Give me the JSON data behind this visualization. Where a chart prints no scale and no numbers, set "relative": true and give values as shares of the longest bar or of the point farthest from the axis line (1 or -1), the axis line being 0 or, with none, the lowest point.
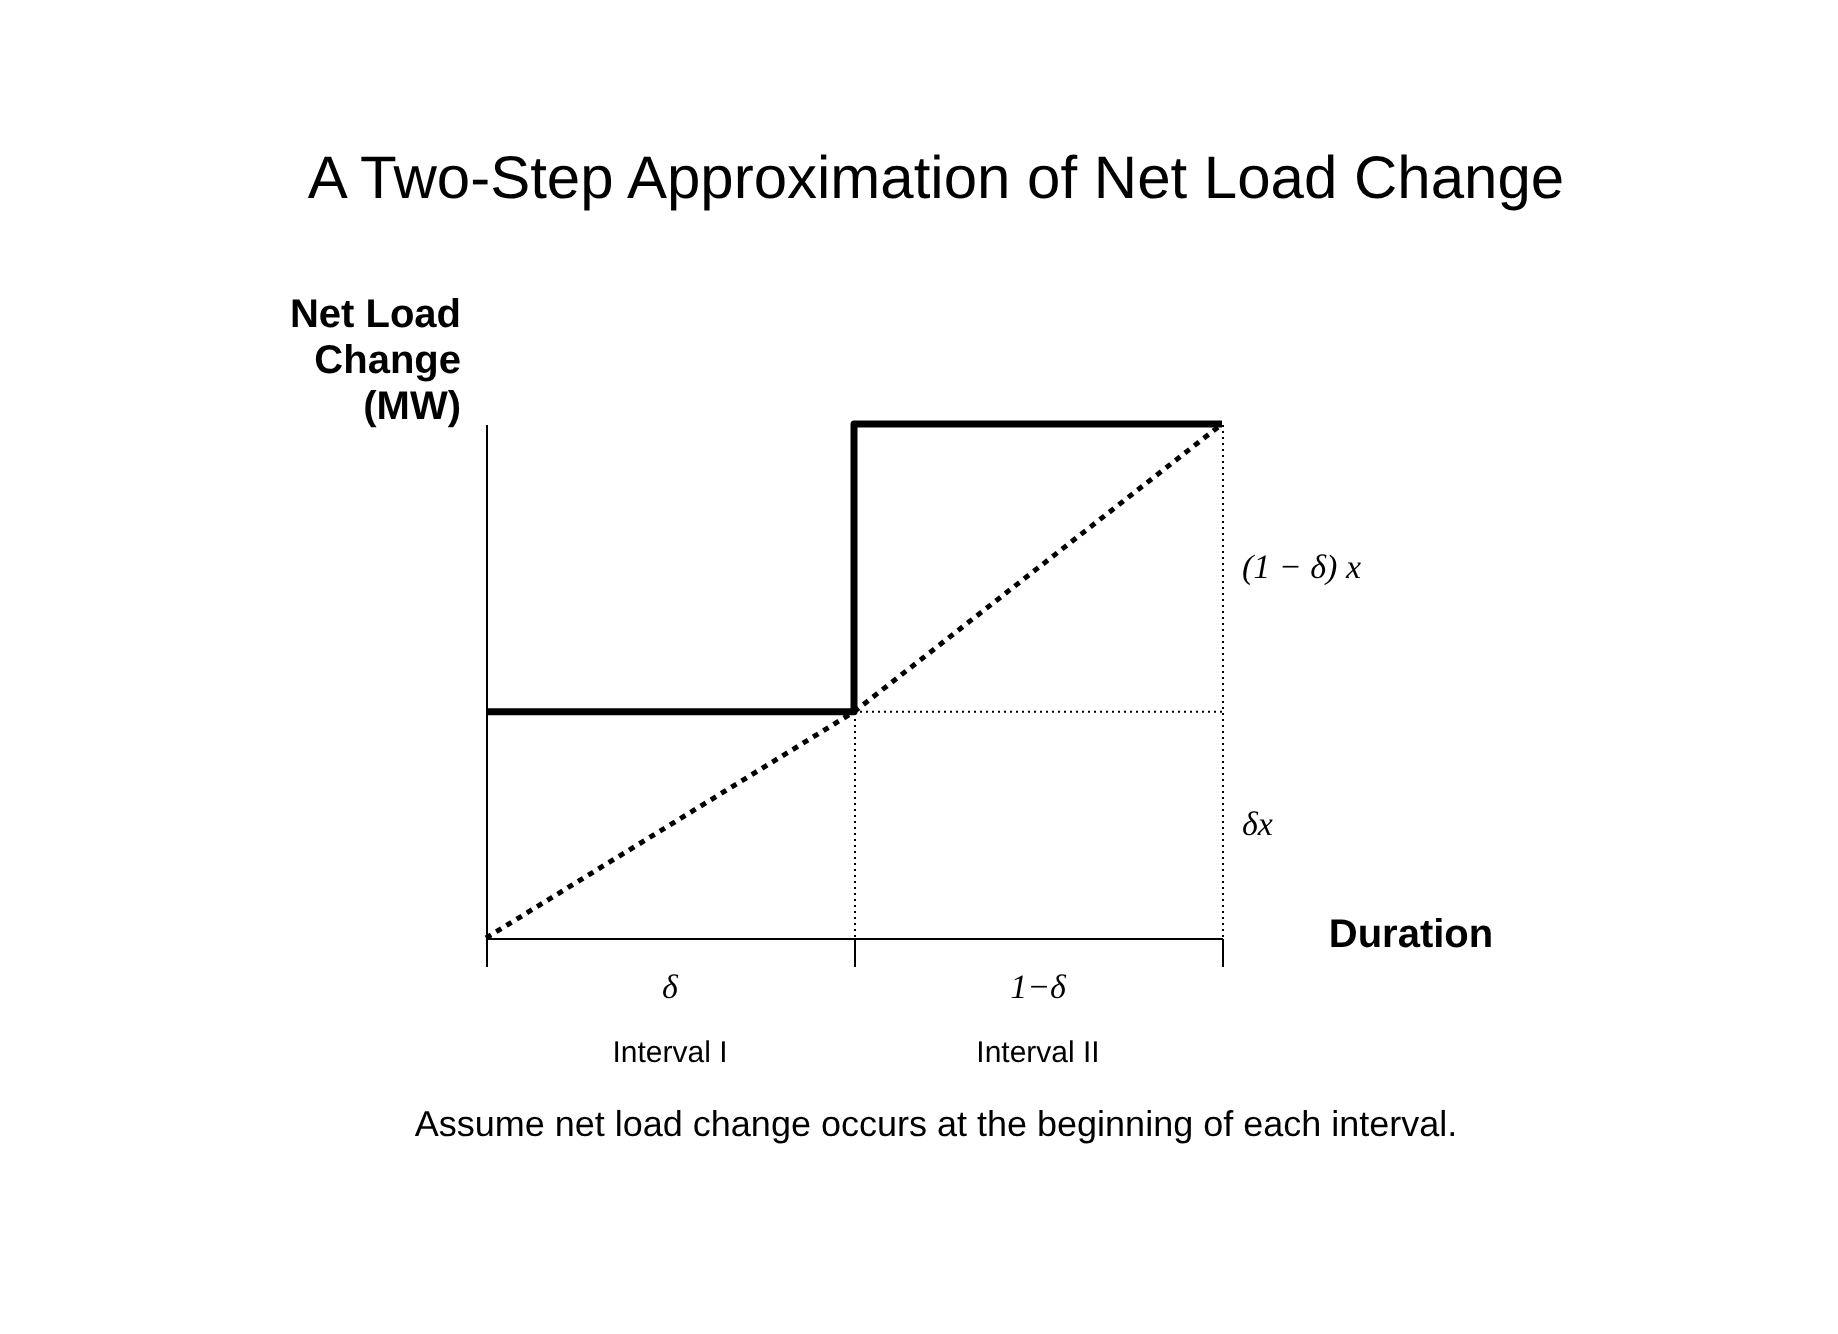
{
  "chart_data": {
    "type": "step",
    "title": "A Two-Step Approximation of Net Load Change",
    "xlabel": "Duration",
    "ylabel": "Net Load Change (MW)",
    "relative": true,
    "categories": [
      null,
      null,
      null
    ],
    "tick_labels": false,
    "grid": "x",
    "series": [
      {
        "type": "step",
        "values": [
          0.44,
          1,
          1
        ],
        "color": "#000000",
        "line_style": "solid"
      },
      {
        "type": "line",
        "values": [
          0,
          0.44,
          1
        ],
        "color": "#000000",
        "line_style": "dotted"
      }
    ],
    "ref_lines": [
      {
        "axis": "y",
        "value": 0.44,
        "line_style": "dotted",
        "color": "#000000"
      }
    ],
    "annotations": [
      "(1 − δ) x",
      "δx",
      "δ",
      "Interval I",
      "1−δ",
      "Interval II",
      "Assume net load change occurs at the beginning of each interval."
    ]
  }
}
